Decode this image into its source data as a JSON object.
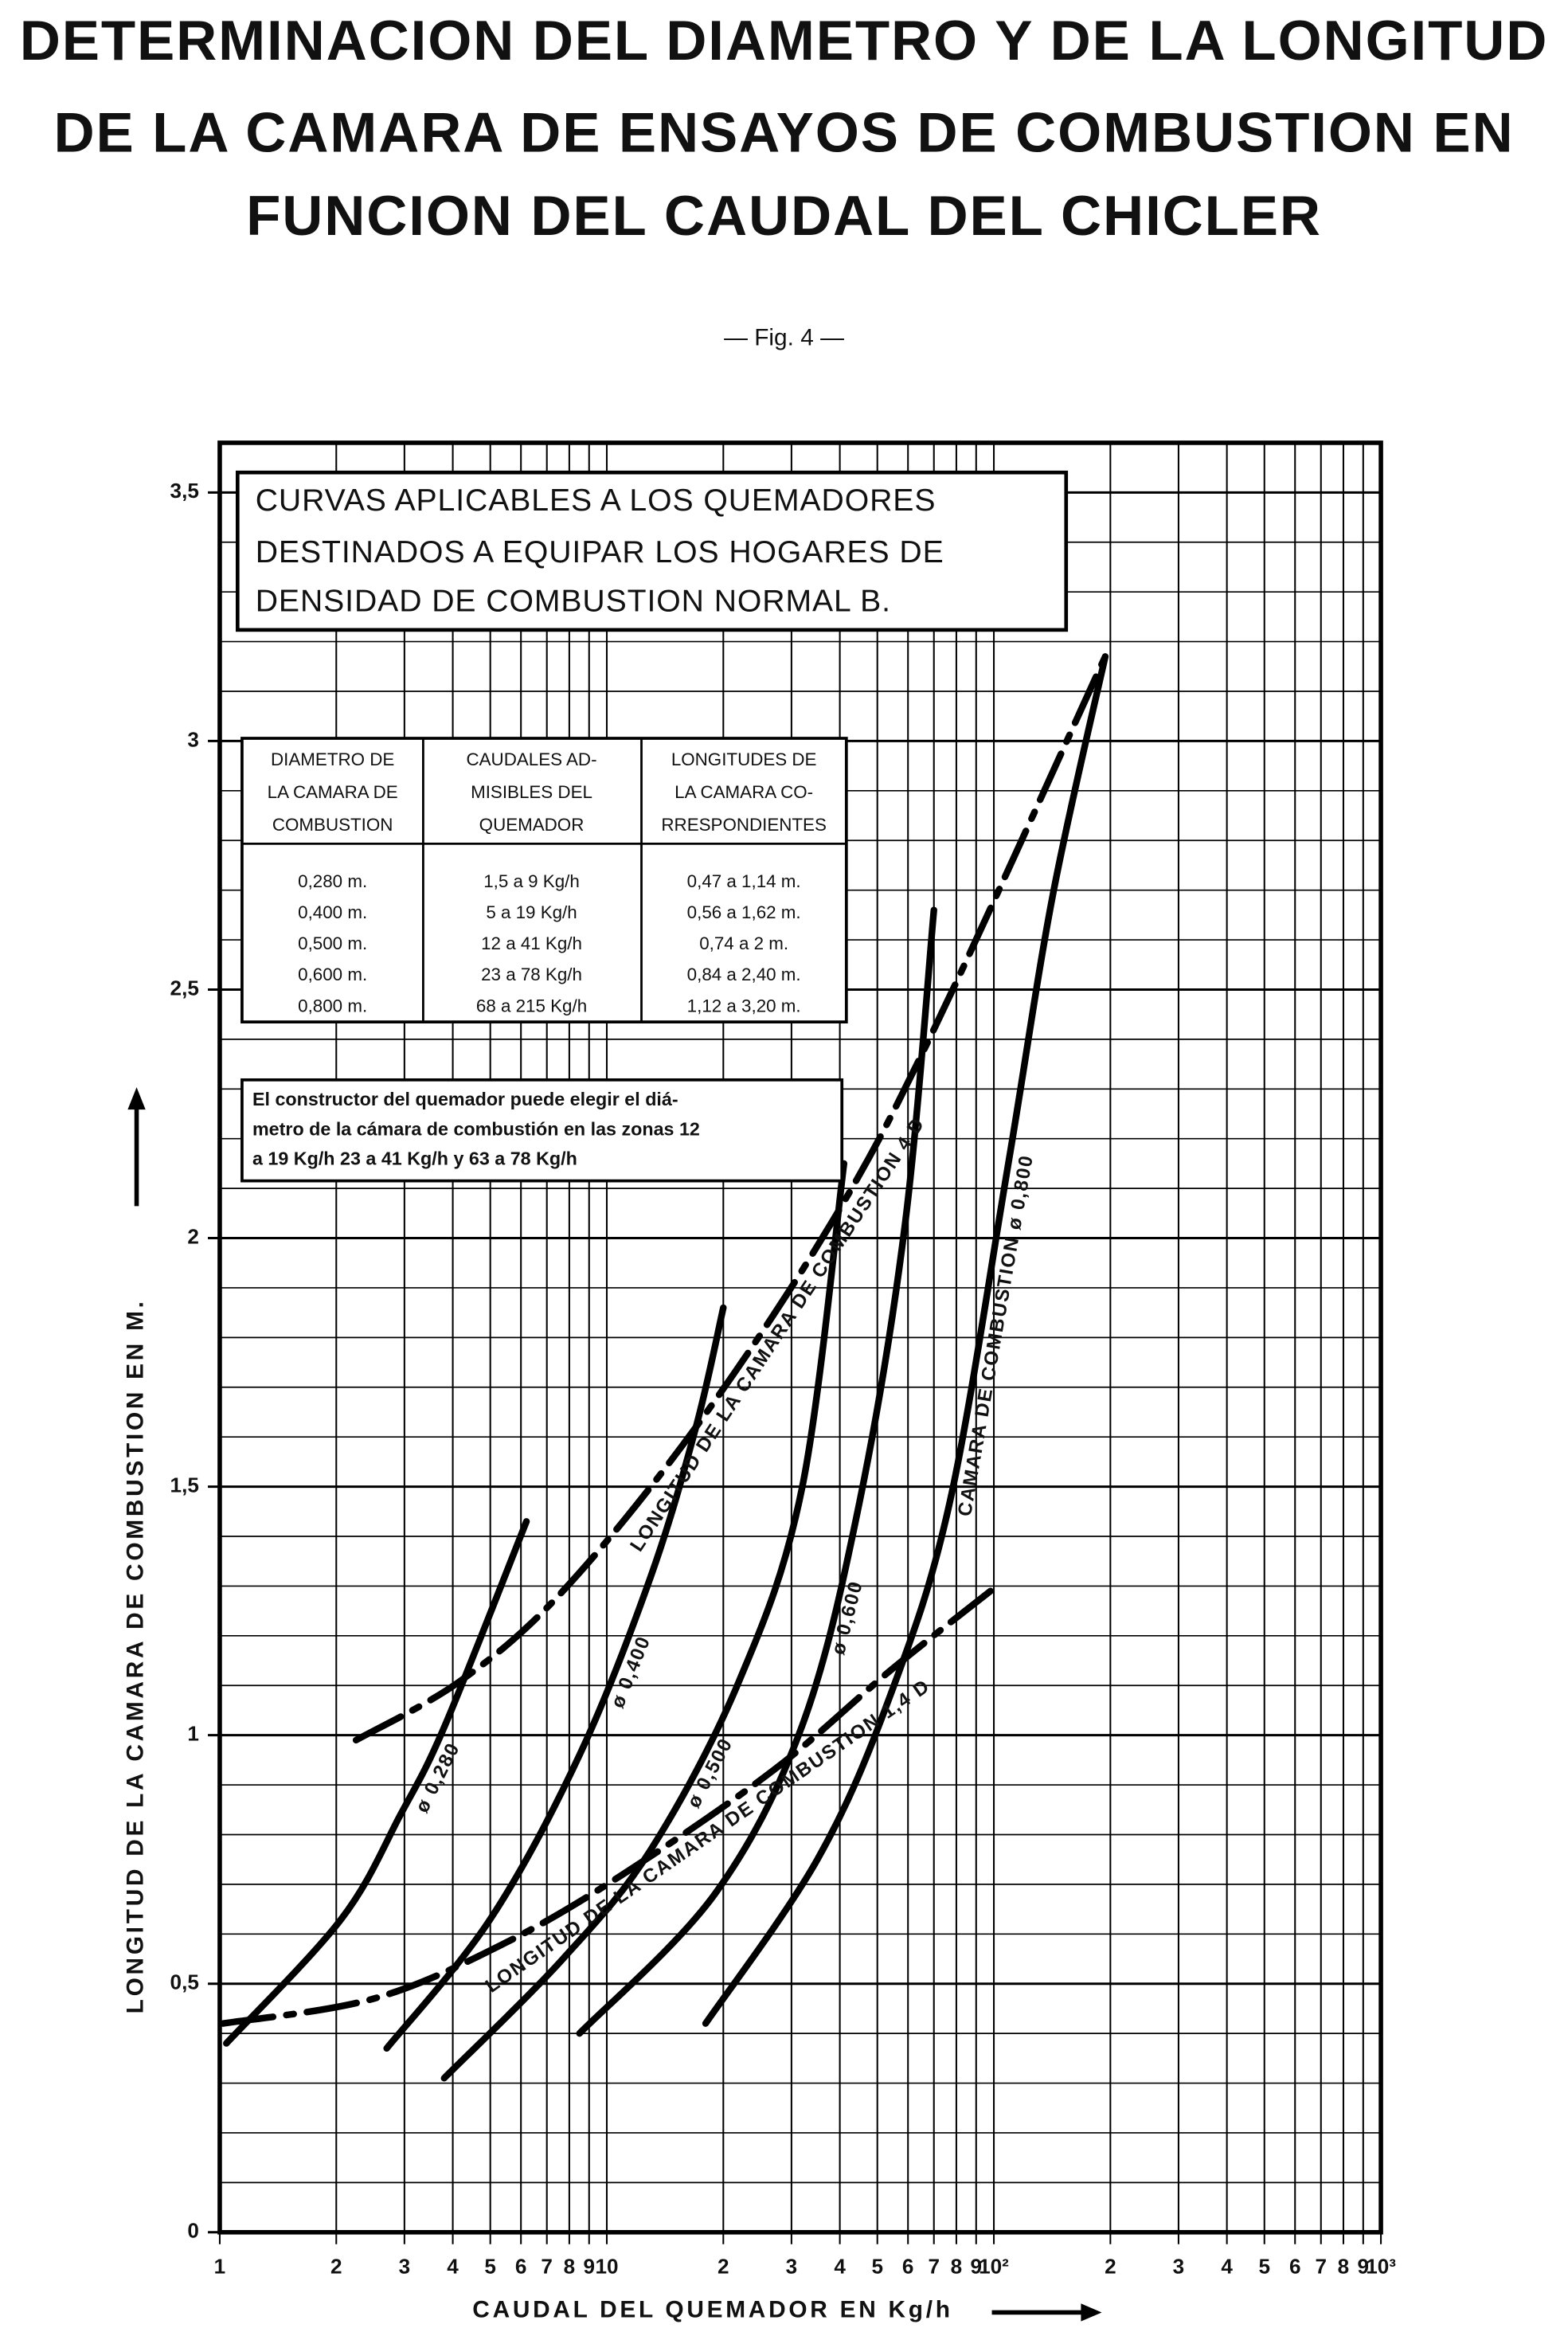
{
  "chart_data": {
    "type": "line",
    "title": [
      "DETERMINACION DEL DIAMETRO Y DE LA LONGITUD",
      "DE LA CAMARA DE ENSAYOS DE COMBUSTION EN",
      "FUNCION DEL CAUDAL DEL CHICLER"
    ],
    "subtitle": "— Fig. 4 —",
    "x_label": "CAUDAL DEL QUEMADOR EN Kg/h",
    "y_label": "LONGITUD DE LA CAMARA DE COMBUSTION EN M.",
    "xscale": "log",
    "xlim": [
      1,
      1000
    ],
    "ylim": [
      0,
      3.6
    ],
    "xticks": [
      1,
      2,
      3,
      4,
      5,
      6,
      7,
      8,
      9,
      10,
      {
        "value": 20,
        "label": "2"
      },
      {
        "value": 30,
        "label": "3"
      },
      {
        "value": 40,
        "label": "4"
      },
      {
        "value": 50,
        "label": "5"
      },
      {
        "value": 60,
        "label": "6"
      },
      {
        "value": 70,
        "label": "7"
      },
      {
        "value": 80,
        "label": "8"
      },
      {
        "value": 90,
        "label": "9"
      },
      {
        "value": 100,
        "label": "10²"
      },
      {
        "value": 200,
        "label": "2"
      },
      {
        "value": 300,
        "label": "3"
      },
      {
        "value": 400,
        "label": "4"
      },
      {
        "value": 500,
        "label": "5"
      },
      {
        "value": 600,
        "label": "6"
      },
      {
        "value": 700,
        "label": "7"
      },
      {
        "value": 800,
        "label": "8"
      },
      {
        "value": 900,
        "label": "9"
      },
      {
        "value": 1000,
        "label": "10³"
      }
    ],
    "yticks": [
      0,
      {
        "value": 0.5,
        "label": "0,5"
      },
      1,
      {
        "value": 1.5,
        "label": "1,5"
      },
      2,
      {
        "value": 2.5,
        "label": "2,5"
      },
      3,
      {
        "value": 3.5,
        "label": "3,5"
      }
    ],
    "yminorticks": [
      0.1,
      0.2,
      0.3,
      0.4,
      0.6,
      0.7,
      0.8,
      0.9,
      1.1,
      1.2,
      1.3,
      1.4,
      1.6,
      1.7,
      1.8,
      1.9,
      2.1,
      2.2,
      2.3,
      2.4,
      2.6,
      2.7,
      2.8,
      2.9,
      3.1,
      3.2,
      3.3,
      3.4
    ],
    "grid": true,
    "series": [
      {
        "name": "ø 0,280",
        "color": "#000000",
        "style": "solid",
        "x": [
          1.04,
          2.06,
          2.93,
          3.82,
          6.2
        ],
        "values": [
          0.38,
          0.63,
          0.84,
          1.02,
          1.43
        ]
      },
      {
        "name": "ø 0,400",
        "color": "#000000",
        "style": "solid",
        "x": [
          2.7,
          5.0,
          8.5,
          13,
          17,
          20
        ],
        "values": [
          0.37,
          0.63,
          0.96,
          1.32,
          1.62,
          1.86
        ]
      },
      {
        "name": "ø 0,500",
        "color": "#000000",
        "style": "solid",
        "x": [
          3.8,
          7.7,
          13,
          22,
          32,
          41
        ],
        "values": [
          0.31,
          0.55,
          0.77,
          1.11,
          1.5,
          2.15
        ]
      },
      {
        "name": "ø 0,600",
        "color": "#000000",
        "style": "solid",
        "x": [
          8.5,
          19,
          32,
          45,
          59,
          70
        ],
        "values": [
          0.4,
          0.68,
          1.02,
          1.47,
          2.03,
          2.66
        ]
      },
      {
        "name": "CAMARA DE COMBUSTION ø 0,800",
        "color": "#000000",
        "style": "solid",
        "x": [
          18,
          35,
          54,
          77,
          109,
          142,
          194
        ],
        "values": [
          0.42,
          0.75,
          1.08,
          1.47,
          2.15,
          2.69,
          3.17
        ]
      },
      {
        "name": "LONGITUD DE LA CAMARA DE COMBUSTION 4 D",
        "color": "#000000",
        "style": "dashdot",
        "x": [
          2.25,
          4.2,
          7.7,
          17,
          38,
          70,
          194
        ],
        "values": [
          0.99,
          1.11,
          1.29,
          1.62,
          2.03,
          2.42,
          3.17
        ]
      },
      {
        "name": "LONGITUD DE LA CAMARA DE COMBUSTION 1,4 D",
        "color": "#000000",
        "style": "dashdot",
        "x": [
          1.02,
          2.5,
          5.4,
          11,
          27,
          54,
          98
        ],
        "values": [
          0.42,
          0.47,
          0.58,
          0.72,
          0.93,
          1.13,
          1.29
        ]
      }
    ]
  },
  "heading_box": [
    "CURVAS APLICABLES A LOS QUEMADORES",
    "DESTINADOS A EQUIPAR LOS HOGARES DE",
    "DENSIDAD DE COMBUSTION NORMAL B."
  ],
  "table": {
    "header": [
      [
        "DIAMETRO DE",
        "LA CAMARA DE",
        "COMBUSTION"
      ],
      [
        "CAUDALES AD-",
        "MISIBLES DEL",
        "QUEMADOR"
      ],
      [
        "LONGITUDES DE",
        "LA CAMARA CO-",
        "RRESPONDIENTES"
      ]
    ],
    "rows": [
      [
        "0,280 m.",
        "1,5 a 9 Kg/h",
        "0,47 a 1,14 m."
      ],
      [
        "0,400 m.",
        "5 a 19 Kg/h",
        "0,56 a 1,62 m."
      ],
      [
        "0,500 m.",
        "12 a 41 Kg/h",
        "0,74 a 2 m."
      ],
      [
        "0,600 m.",
        "23 a 78 Kg/h",
        "0,84 a 2,40 m."
      ],
      [
        "0,800 m.",
        "68 a 215 Kg/h",
        "1,12 a 3,20 m."
      ]
    ]
  },
  "note_box": [
    "El constructor del quemador puede elegir el diá-",
    "metro de la cámara de combustión en las zonas 12",
    "a 19 Kg/h  23 a 41 Kg/h y 63 a 78 Kg/h"
  ]
}
